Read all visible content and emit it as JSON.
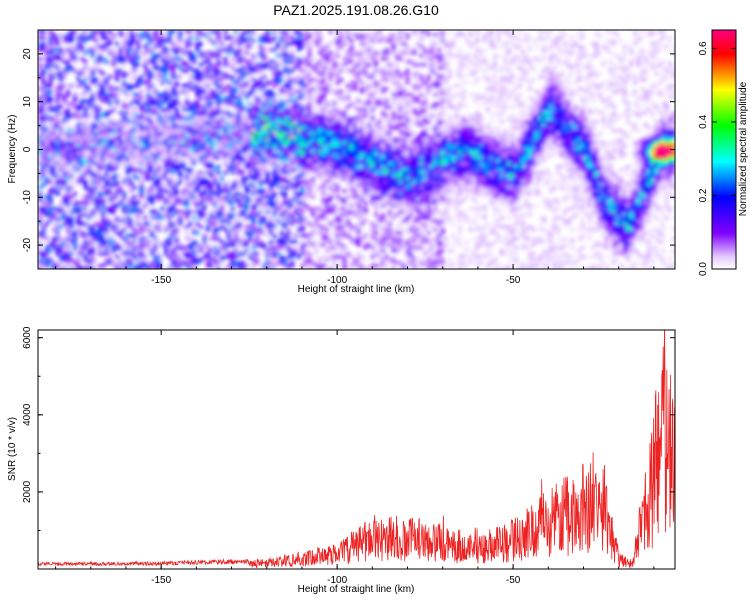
{
  "title": "PAZ1.2025.191.08.26.G10",
  "chart_data": [
    {
      "type": "heatmap",
      "xlabel": "Height of straight line (km)",
      "ylabel": "Frequency (Hz)",
      "xlim": [
        -185,
        -4
      ],
      "ylim": [
        -25,
        25
      ],
      "x_ticks": [
        -150,
        -100,
        -50
      ],
      "y_ticks": [
        -20,
        -10,
        0,
        10,
        20
      ],
      "colorbar": {
        "label": "Normalized spectral amplitude",
        "range": [
          0,
          0.65
        ],
        "ticks": [
          0.0,
          0.2,
          0.4,
          0.6
        ],
        "colormap": [
          "#ffffff",
          "#e6ccff",
          "#8000ff",
          "#0000ff",
          "#00ffff",
          "#00ff00",
          "#ffff00",
          "#ff0000",
          "#ff0080"
        ]
      },
      "trend_points": [
        {
          "x": -185,
          "y": 0
        },
        {
          "x": -120,
          "y": 4
        },
        {
          "x": -100,
          "y": 1
        },
        {
          "x": -80,
          "y": -6
        },
        {
          "x": -65,
          "y": 0
        },
        {
          "x": -50,
          "y": -5
        },
        {
          "x": -40,
          "y": 9
        },
        {
          "x": -30,
          "y": 0
        },
        {
          "x": -25,
          "y": -10
        },
        {
          "x": -18,
          "y": -16
        },
        {
          "x": -8,
          "y": 0
        }
      ],
      "peak": {
        "x": -8,
        "y": 0,
        "value": 0.65
      }
    },
    {
      "type": "line",
      "xlabel": "Height of straight line (km)",
      "ylabel": "SNR (10 * v/v)",
      "xlim": [
        -185,
        -4
      ],
      "ylim": [
        0,
        6200
      ],
      "x_ticks": [
        -150,
        -100,
        -50
      ],
      "y_ticks": [
        2000,
        4000,
        6000
      ],
      "series": [
        {
          "color": "#ee2222",
          "envelope": [
            {
              "x": -185,
              "y": 150
            },
            {
              "x": -150,
              "y": 170
            },
            {
              "x": -120,
              "y": 250
            },
            {
              "x": -100,
              "y": 600
            },
            {
              "x": -90,
              "y": 1300
            },
            {
              "x": -75,
              "y": 1200
            },
            {
              "x": -60,
              "y": 800
            },
            {
              "x": -50,
              "y": 1200
            },
            {
              "x": -40,
              "y": 1900
            },
            {
              "x": -30,
              "y": 2500
            },
            {
              "x": -25,
              "y": 3000
            },
            {
              "x": -20,
              "y": 400
            },
            {
              "x": -16,
              "y": 200
            },
            {
              "x": -14,
              "y": 1500
            },
            {
              "x": -10,
              "y": 3800
            },
            {
              "x": -7,
              "y": 6000
            },
            {
              "x": -4,
              "y": 4500
            }
          ]
        }
      ]
    }
  ]
}
